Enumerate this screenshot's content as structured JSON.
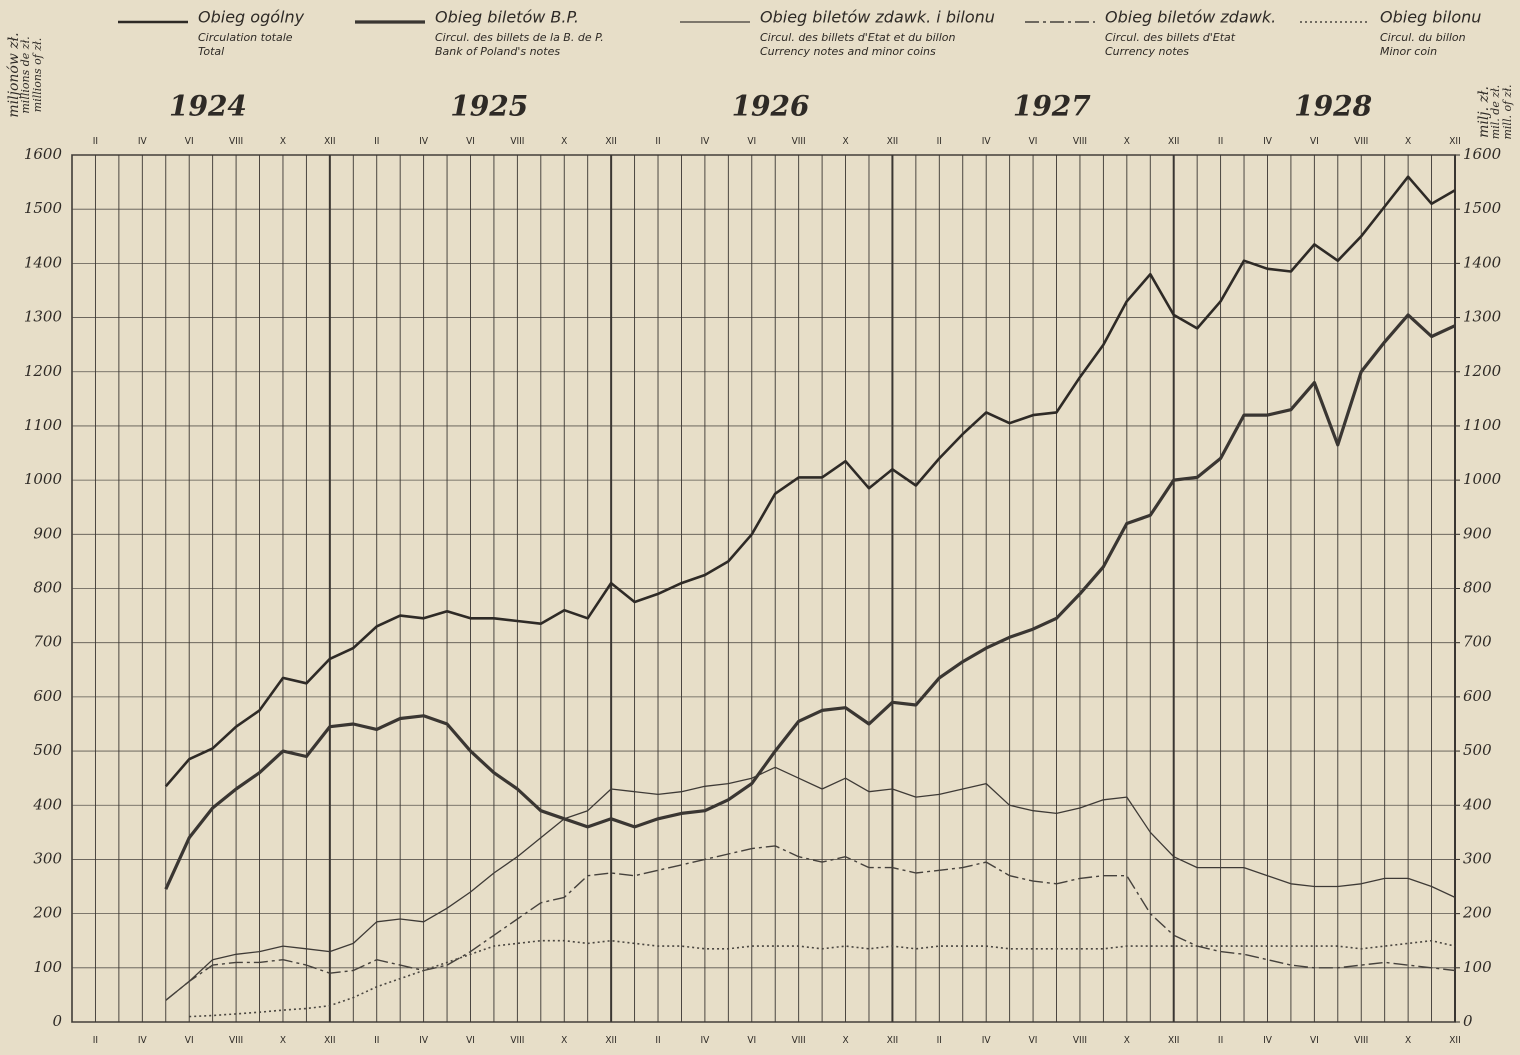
{
  "chart_data": {
    "type": "line",
    "years": [
      "1924",
      "1925",
      "1926",
      "1927",
      "1928"
    ],
    "categories": [
      null,
      "II",
      null,
      "IV",
      null,
      "VI",
      null,
      "VIII",
      null,
      "X",
      null,
      "XII",
      null,
      "II",
      null,
      "IV",
      null,
      "VI",
      null,
      "VIII",
      null,
      "X",
      null,
      "XII",
      null,
      "II",
      null,
      "IV",
      null,
      "VI",
      null,
      "VIII",
      null,
      "X",
      null,
      "XII",
      null,
      "II",
      null,
      "IV",
      null,
      "VI",
      null,
      "VIII",
      null,
      "X",
      null,
      "XII",
      null,
      "II",
      null,
      "IV",
      null,
      "VI",
      null,
      "VIII",
      null,
      "X",
      null,
      "XII"
    ],
    "ylabel": [
      "miljonów zł.",
      "millions de zł.",
      "millions of zł."
    ],
    "y2label": [
      "milj. zł.",
      "mil. de zł.",
      "mill. of zł."
    ],
    "ylim": [
      0,
      1600
    ],
    "yticks": [
      0,
      100,
      200,
      300,
      400,
      500,
      600,
      700,
      800,
      900,
      1000,
      1100,
      1200,
      1300,
      1400,
      1500,
      1600
    ],
    "y2lim": [
      0,
      1600
    ],
    "y2ticks": [
      0,
      100,
      200,
      300,
      400,
      500,
      600,
      700,
      800,
      900,
      1000,
      1100,
      1200,
      1300,
      1400,
      1500,
      1600
    ],
    "grid": true,
    "series": [
      {
        "name": "Obieg ogólny",
        "subtitles": [
          "Circulation totale",
          "Total"
        ],
        "color": "#2e2a26",
        "style": "solid",
        "width": 2.6,
        "values": [
          null,
          null,
          null,
          null,
          435,
          485,
          505,
          545,
          575,
          635,
          625,
          670,
          690,
          730,
          750,
          745,
          758,
          745,
          745,
          740,
          735,
          760,
          745,
          810,
          775,
          790,
          810,
          825,
          850,
          900,
          975,
          1005,
          1005,
          1035,
          985,
          1020,
          990,
          1040,
          1085,
          1125,
          1105,
          1120,
          1125,
          1190,
          1250,
          1330,
          1380,
          1305,
          1280,
          1330,
          1405,
          1390,
          1385,
          1435,
          1405,
          1450,
          1505,
          1560,
          1510,
          1535
        ]
      },
      {
        "name": "Obieg biletów B.P.",
        "subtitles": [
          "Circul. des billets de la B. de P.",
          "Bank of Poland's notes"
        ],
        "color": "#3a3632",
        "style": "solid",
        "width": 3.2,
        "values": [
          null,
          null,
          null,
          null,
          245,
          340,
          395,
          430,
          460,
          500,
          490,
          545,
          550,
          540,
          560,
          565,
          550,
          500,
          460,
          430,
          390,
          375,
          360,
          375,
          360,
          375,
          385,
          390,
          410,
          440,
          500,
          555,
          575,
          580,
          550,
          590,
          585,
          635,
          665,
          690,
          710,
          725,
          745,
          790,
          840,
          920,
          935,
          1000,
          1005,
          1040,
          1120,
          1120,
          1130,
          1180,
          1065,
          1200,
          1255,
          1305,
          1265,
          1285
        ]
      },
      {
        "name": "Obieg biletów zdawk. i bilonu",
        "subtitles": [
          "Circul. des billets d'Etat et du billon",
          "Currency notes and minor coins"
        ],
        "color": "#3e3a36",
        "style": "solid",
        "width": 1.3,
        "values": [
          null,
          null,
          null,
          null,
          40,
          75,
          115,
          125,
          130,
          140,
          135,
          130,
          145,
          185,
          190,
          185,
          210,
          240,
          275,
          305,
          340,
          375,
          390,
          430,
          425,
          420,
          425,
          435,
          440,
          450,
          470,
          450,
          430,
          450,
          425,
          430,
          415,
          420,
          430,
          440,
          400,
          390,
          385,
          395,
          410,
          415,
          350,
          305,
          285,
          285,
          285,
          270,
          255,
          250,
          250,
          255,
          265,
          265,
          250,
          230
        ]
      },
      {
        "name": "Obieg biletów zdawk.",
        "subtitles": [
          "Circul. des billets d'Etat",
          "Currency notes"
        ],
        "color": "#45413c",
        "style": "dashdot",
        "width": 1.4,
        "values": [
          null,
          null,
          null,
          null,
          40,
          75,
          105,
          110,
          110,
          115,
          105,
          90,
          95,
          115,
          105,
          95,
          105,
          130,
          160,
          190,
          220,
          230,
          270,
          275,
          270,
          280,
          290,
          300,
          310,
          320,
          325,
          305,
          295,
          305,
          285,
          285,
          275,
          280,
          285,
          295,
          270,
          260,
          255,
          265,
          270,
          270,
          200,
          160,
          140,
          130,
          125,
          115,
          105,
          100,
          100,
          105,
          110,
          105,
          100,
          95
        ]
      },
      {
        "name": "Obieg bilonu",
        "subtitles": [
          "Circul. du billon",
          "Minor coin"
        ],
        "color": "#4a4640",
        "style": "dotted",
        "width": 1.6,
        "values": [
          null,
          null,
          null,
          null,
          null,
          10,
          12,
          15,
          18,
          22,
          25,
          30,
          45,
          65,
          80,
          95,
          110,
          125,
          140,
          145,
          150,
          150,
          145,
          150,
          145,
          140,
          140,
          135,
          135,
          140,
          140,
          140,
          135,
          140,
          135,
          140,
          135,
          140,
          140,
          140,
          135,
          135,
          135,
          135,
          135,
          140,
          140,
          140,
          140,
          140,
          140,
          140,
          140,
          140,
          140,
          135,
          140,
          145,
          150,
          140
        ]
      }
    ]
  }
}
